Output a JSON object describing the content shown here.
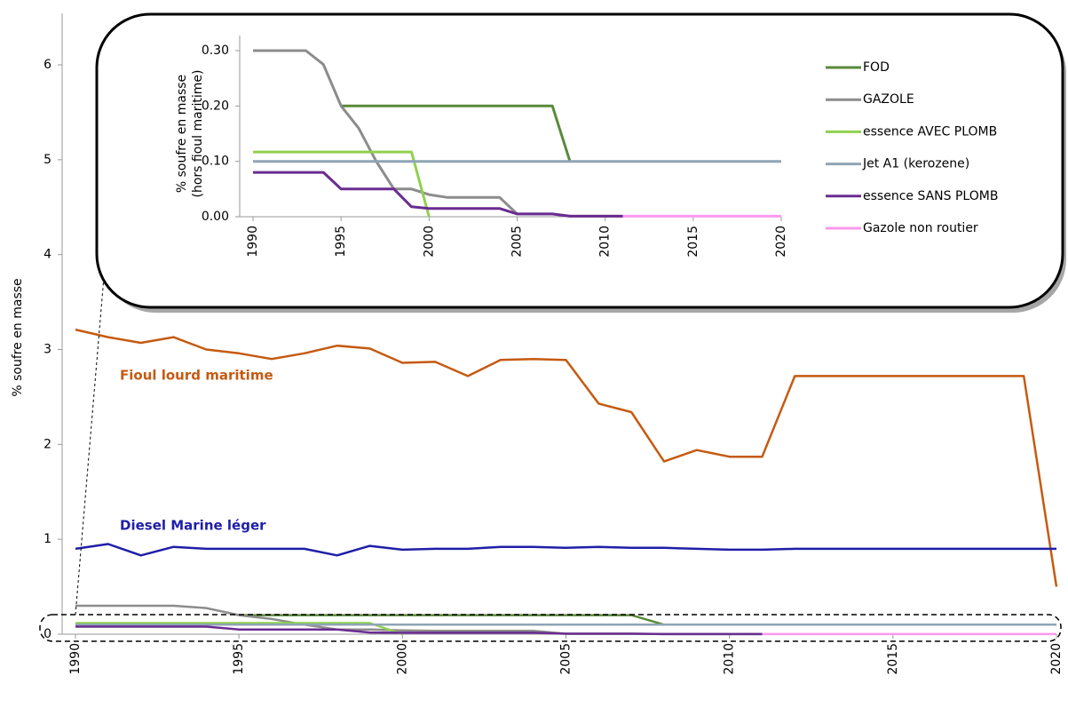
{
  "chart_data": [
    {
      "type": "line",
      "ylabel": "% soufre en masse",
      "x": [
        1990,
        1991,
        1992,
        1993,
        1994,
        1995,
        1996,
        1997,
        1998,
        1999,
        2000,
        2001,
        2002,
        2003,
        2004,
        2005,
        2006,
        2007,
        2008,
        2009,
        2010,
        2011,
        2012,
        2013,
        2014,
        2015,
        2016,
        2017,
        2018,
        2019,
        2020
      ],
      "xlim": [
        1990,
        2020
      ],
      "xticks": [
        1990,
        1995,
        2000,
        2005,
        2010,
        2015,
        2020
      ],
      "ylim": [
        0,
        6
      ],
      "yticks": [
        0,
        1,
        2,
        3,
        4,
        5,
        6
      ],
      "series": [
        {
          "name": "Fioul lourd maritime",
          "color": "#c55a11",
          "values": [
            3.21,
            3.13,
            3.07,
            3.13,
            3.0,
            2.96,
            2.9,
            2.96,
            3.04,
            3.01,
            2.86,
            2.87,
            2.72,
            2.89,
            2.9,
            2.89,
            2.43,
            2.34,
            1.82,
            1.94,
            1.87,
            1.87,
            2.72,
            2.72,
            2.72,
            2.72,
            2.72,
            2.72,
            2.72,
            2.72,
            0.5
          ]
        },
        {
          "name": "Diesel Marine léger",
          "color": "#1f1fa8",
          "values": [
            0.9,
            0.95,
            0.83,
            0.92,
            0.9,
            0.9,
            0.9,
            0.9,
            0.83,
            0.93,
            0.89,
            0.9,
            0.9,
            0.92,
            0.92,
            0.91,
            0.92,
            0.91,
            0.91,
            0.9,
            0.89,
            0.89,
            0.9,
            0.9,
            0.9,
            0.9,
            0.9,
            0.9,
            0.9,
            0.9,
            0.9
          ]
        },
        {
          "color": "#5a8a3a",
          "values": [
            null,
            null,
            null,
            null,
            null,
            0.2,
            0.2,
            0.2,
            0.2,
            0.2,
            0.2,
            0.2,
            0.2,
            0.2,
            0.2,
            0.2,
            0.2,
            0.2,
            0.1,
            null,
            null,
            null,
            null,
            null,
            null,
            null,
            null,
            null,
            null,
            null,
            null
          ]
        },
        {
          "color": "#8c8c8c",
          "values": [
            0.3,
            0.3,
            0.3,
            0.3,
            0.275,
            0.2,
            0.16,
            0.1,
            0.05,
            0.05,
            0.04,
            0.035,
            0.035,
            0.035,
            0.035,
            0.005,
            0.005,
            0.005,
            0.001,
            0.001,
            0.001,
            0.001,
            null,
            null,
            null,
            null,
            null,
            null,
            null,
            null,
            null
          ]
        },
        {
          "color": "#8fd14f",
          "values": [
            0.117,
            0.117,
            0.117,
            0.117,
            0.117,
            0.117,
            0.117,
            0.117,
            0.117,
            0.117,
            0.0,
            null,
            null,
            null,
            null,
            null,
            null,
            null,
            null,
            null,
            null,
            null,
            null,
            null,
            null,
            null,
            null,
            null,
            null,
            null,
            null
          ]
        },
        {
          "color": "#8ea4b4",
          "values": [
            0.1,
            0.1,
            0.1,
            0.1,
            0.1,
            0.1,
            0.1,
            0.1,
            0.1,
            0.1,
            0.1,
            0.1,
            0.1,
            0.1,
            0.1,
            0.1,
            0.1,
            0.1,
            0.1,
            0.1,
            0.1,
            0.1,
            0.1,
            0.1,
            0.1,
            0.1,
            0.1,
            0.1,
            0.1,
            0.1,
            0.1
          ]
        },
        {
          "color": "#6a2c91",
          "values": [
            0.08,
            0.08,
            0.08,
            0.08,
            0.08,
            0.05,
            0.05,
            0.05,
            0.05,
            0.018,
            0.015,
            0.015,
            0.015,
            0.015,
            0.015,
            0.005,
            0.005,
            0.005,
            0.001,
            0.001,
            0.001,
            0.001,
            null,
            null,
            null,
            null,
            null,
            null,
            null,
            null,
            null
          ]
        },
        {
          "color": "#ff99ee",
          "values": [
            null,
            null,
            null,
            null,
            null,
            null,
            null,
            null,
            null,
            null,
            null,
            null,
            null,
            null,
            null,
            null,
            null,
            null,
            null,
            null,
            null,
            0.001,
            0.001,
            0.001,
            0.001,
            0.001,
            0.001,
            0.001,
            0.001,
            0.001,
            0.001
          ]
        }
      ]
    },
    {
      "type": "line",
      "ylabel": [
        "% soufre en masse",
        "(hors fioul maritime)"
      ],
      "x": [
        1990,
        1991,
        1992,
        1993,
        1994,
        1995,
        1996,
        1997,
        1998,
        1999,
        2000,
        2001,
        2002,
        2003,
        2004,
        2005,
        2006,
        2007,
        2008,
        2009,
        2010,
        2011,
        2012,
        2013,
        2014,
        2015,
        2016,
        2017,
        2018,
        2019,
        2020
      ],
      "xlim": [
        1990,
        2020
      ],
      "xticks": [
        1990,
        1995,
        2000,
        2005,
        2010,
        2015,
        2020
      ],
      "ylim": [
        0,
        0.3
      ],
      "yticks": [
        {
          "value": 0,
          "label": "0.00"
        },
        {
          "value": 0.1,
          "label": "0.10"
        },
        {
          "value": 0.2,
          "label": "0.20"
        },
        {
          "value": 0.3,
          "label": "0.30"
        }
      ],
      "series": [
        {
          "name": "FOD",
          "color": "#5a8a3a",
          "values": [
            null,
            null,
            null,
            null,
            null,
            0.2,
            0.2,
            0.2,
            0.2,
            0.2,
            0.2,
            0.2,
            0.2,
            0.2,
            0.2,
            0.2,
            0.2,
            0.2,
            0.1,
            null,
            null,
            null,
            null,
            null,
            null,
            null,
            null,
            null,
            null,
            null,
            null
          ]
        },
        {
          "name": "GAZOLE",
          "color": "#8c8c8c",
          "values": [
            0.3,
            0.3,
            0.3,
            0.3,
            0.275,
            0.2,
            0.16,
            0.1,
            0.05,
            0.05,
            0.04,
            0.035,
            0.035,
            0.035,
            0.035,
            0.005,
            0.005,
            0.005,
            0.001,
            0.001,
            0.001,
            0.001,
            null,
            null,
            null,
            null,
            null,
            null,
            null,
            null,
            null
          ]
        },
        {
          "name": "essence AVEC PLOMB",
          "color": "#8fd14f",
          "values": [
            0.117,
            0.117,
            0.117,
            0.117,
            0.117,
            0.117,
            0.117,
            0.117,
            0.117,
            0.117,
            0.0,
            null,
            null,
            null,
            null,
            null,
            null,
            null,
            null,
            null,
            null,
            null,
            null,
            null,
            null,
            null,
            null,
            null,
            null,
            null,
            null
          ]
        },
        {
          "name": "Jet A1 (kerozene)",
          "color": "#8ea4b4",
          "values": [
            0.1,
            0.1,
            0.1,
            0.1,
            0.1,
            0.1,
            0.1,
            0.1,
            0.1,
            0.1,
            0.1,
            0.1,
            0.1,
            0.1,
            0.1,
            0.1,
            0.1,
            0.1,
            0.1,
            0.1,
            0.1,
            0.1,
            0.1,
            0.1,
            0.1,
            0.1,
            0.1,
            0.1,
            0.1,
            0.1,
            0.1
          ]
        },
        {
          "name": "essence SANS PLOMB",
          "color": "#6a2c91",
          "values": [
            0.08,
            0.08,
            0.08,
            0.08,
            0.08,
            0.05,
            0.05,
            0.05,
            0.05,
            0.018,
            0.015,
            0.015,
            0.015,
            0.015,
            0.015,
            0.005,
            0.005,
            0.005,
            0.001,
            0.001,
            0.001,
            0.001,
            null,
            null,
            null,
            null,
            null,
            null,
            null,
            null,
            null
          ]
        },
        {
          "name": "Gazole non routier",
          "color": "#ff99ee",
          "values": [
            null,
            null,
            null,
            null,
            null,
            null,
            null,
            null,
            null,
            null,
            null,
            null,
            null,
            null,
            null,
            null,
            null,
            null,
            null,
            null,
            null,
            0.001,
            0.001,
            0.001,
            0.001,
            0.001,
            0.001,
            0.001,
            0.001,
            0.001,
            0.001
          ]
        }
      ]
    }
  ]
}
